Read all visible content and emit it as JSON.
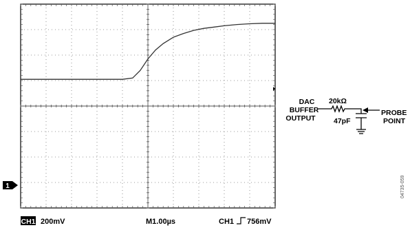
{
  "figure_number": "04735-059",
  "status_bar": {
    "channel_badge": "CH1",
    "volts_per_div": "200mV",
    "timebase": "M1.00µs",
    "trigger_channel": "CH1",
    "trigger_level": "756mV"
  },
  "ground_marker": "1",
  "circuit": {
    "source_line1": "DAC",
    "source_line2": "BUFFER",
    "source_line3": "OUTPUT",
    "resistor": "20kΩ",
    "capacitor": "47pF",
    "probe_line1": "PROBE",
    "probe_line2": "POINT"
  },
  "chart_data": {
    "type": "line",
    "title": "",
    "xlabel": "",
    "ylabel": "",
    "x_divisions": 10,
    "y_divisions": 8,
    "xlim": [
      0,
      10
    ],
    "ylim": [
      0,
      8
    ],
    "grid": true,
    "series": [
      {
        "x": [
          0,
          0.5,
          1,
          1.5,
          2,
          2.5,
          3,
          3.5,
          4,
          4.4,
          4.7,
          5.0,
          5.3,
          5.6,
          6.0,
          6.4,
          6.8,
          7.2,
          7.6,
          8.0,
          8.5,
          9.0,
          9.5,
          10
        ],
        "y": [
          5.05,
          5.05,
          5.05,
          5.05,
          5.05,
          5.05,
          5.05,
          5.05,
          5.05,
          5.1,
          5.4,
          5.85,
          6.2,
          6.45,
          6.7,
          6.85,
          6.97,
          7.05,
          7.1,
          7.15,
          7.2,
          7.23,
          7.25,
          7.25
        ]
      }
    ]
  }
}
